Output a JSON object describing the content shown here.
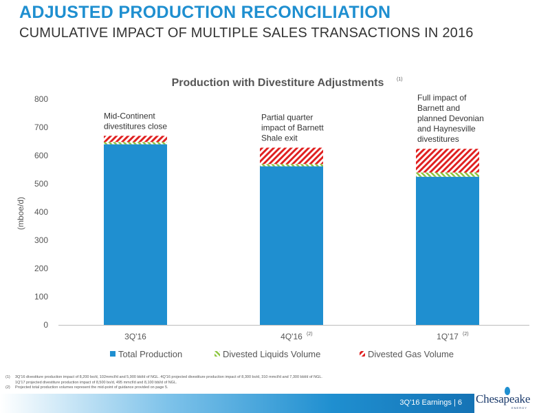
{
  "header": {
    "title": "ADJUSTED PRODUCTION RECONCILIATION",
    "subtitle": "CUMULATIVE IMPACT OF MULTIPLE SALES TRANSACTIONS IN 2016"
  },
  "chart_data": {
    "type": "bar",
    "stacked": true,
    "title": "Production with Divestiture Adjustments",
    "title_note": "(1)",
    "ylabel": "(mboe/d)",
    "xlabel": "",
    "ylim": [
      0,
      800
    ],
    "yticks": [
      0,
      100,
      200,
      300,
      400,
      500,
      600,
      700,
      800
    ],
    "grid": false,
    "legend_position": "bottom",
    "categories": [
      "3Q'16",
      "4Q'16",
      "1Q'17"
    ],
    "category_notes": [
      "",
      "(2)",
      "(2)"
    ],
    "series": [
      {
        "name": "Total Production",
        "values": [
          640,
          562,
          525
        ],
        "color": "#1f8fd0",
        "style": "solid"
      },
      {
        "name": "Divested Liquids Volume",
        "values": [
          8,
          8,
          15
        ],
        "color": "#8cc63f",
        "style": "hatch"
      },
      {
        "name": "Divested Gas Volume",
        "values": [
          22,
          58,
          84
        ],
        "color": "#e02020",
        "style": "hatch"
      }
    ],
    "annotations": [
      [
        "Mid-Continent",
        "divestitures close"
      ],
      [
        "Partial quarter",
        "impact of Barnett",
        "Shale exit"
      ],
      [
        "Full impact of",
        "Barnett and",
        "planned Devonian",
        "and Haynesville",
        "divestitures"
      ]
    ]
  },
  "footnotes": {
    "note1_num": "(1)",
    "note1_line1": "3Q'16 divestiture production impact of 8,200 bo/d, 102mmcf/d and 5,900 bbl/d of NGL. 4Q'16 projected divestiture production impact of 8,300 bo/d, 310 mmcf/d and 7,300 bbl/d of NGL.",
    "note1_line2": "1Q'17 projected divestiture production impact of 8,500 bo/d, 495 mmcf/d and 8,100 bbl/d of NGL.",
    "note2_num": "(2)",
    "note2_line1": "Projected total production volumes represent the mid-point of guidance provided on page 5."
  },
  "footer": {
    "text": "3Q'16 Earnings  |  6",
    "logo_text": "Chesapeake",
    "logo_sub": "ENERGY"
  }
}
